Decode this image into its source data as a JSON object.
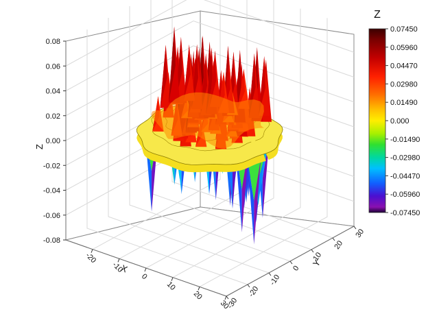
{
  "chart_data": {
    "type": "surface3d",
    "z_axis_label": "Z",
    "x_axis_label": "X",
    "y_axis_label": "Y",
    "xlim": [
      -30,
      30
    ],
    "ylim": [
      -30,
      30
    ],
    "zlim": [
      -0.08,
      0.08
    ],
    "z_ticks": [
      "0.08",
      "0.06",
      "0.04",
      "0.02",
      "0.00",
      "-0.02",
      "-0.04",
      "-0.06",
      "-0.08"
    ],
    "x_ticks": [
      "-20",
      "-10",
      "0",
      "10",
      "20",
      "30"
    ],
    "y_ticks": [
      "30",
      "20",
      "10",
      "0",
      "-10",
      "-20",
      "-30"
    ],
    "grid": true,
    "surface": {
      "description_values": "radial wave centred at origin, rim of ~z=0 at r≈20, sharp spikes up to 0.0745 and down to -0.0745 inside the rim",
      "z_max": 0.0745,
      "z_min": -0.0745
    },
    "colorbar": {
      "title": "Z",
      "ticks": [
        "0.07450",
        "0.05960",
        "0.04470",
        "0.02980",
        "0.01490",
        "0.000",
        "-0.01490",
        "-0.02980",
        "-0.04470",
        "-0.05960",
        "-0.07450"
      ],
      "colors": [
        "#3a0000",
        "#7a0000",
        "#c30000",
        "#ff2000",
        "#ff6a00",
        "#ffb000",
        "#ffe000",
        "#d4f000",
        "#6ee000",
        "#00d040",
        "#00d8a0",
        "#00c8ff",
        "#0080ff",
        "#2020e0",
        "#6010c0",
        "#8a10b0",
        "#1a0033"
      ]
    }
  }
}
